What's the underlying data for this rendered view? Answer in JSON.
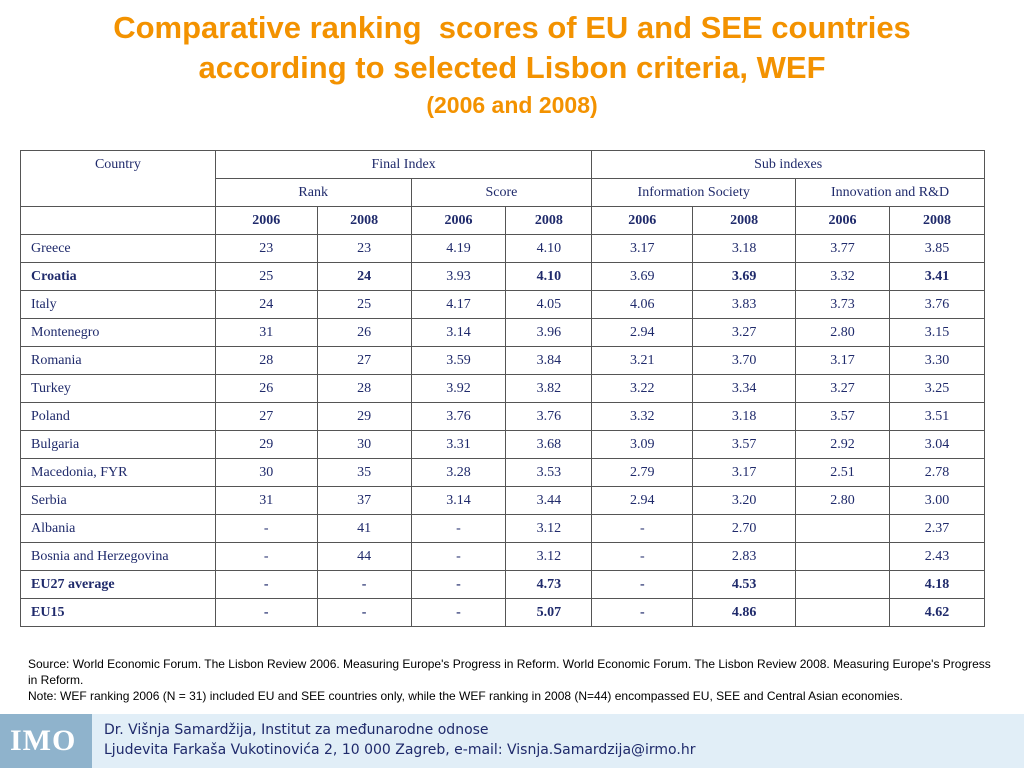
{
  "title": {
    "line1": "Comparative ranking  scores of EU and SEE countries",
    "line2": "according to selected Lisbon criteria, WEF",
    "line3": "(2006 and 2008)"
  },
  "table": {
    "col_country": "Country",
    "group_final": "Final Index",
    "group_sub": "Sub indexes",
    "sub_rank": "Rank",
    "sub_score": "Score",
    "sub_info": "Information Society",
    "sub_innov": "Innovation and R&D",
    "years": [
      "2006",
      "2008",
      "2006",
      "2008",
      "2006",
      "2008",
      "2006",
      "2008"
    ],
    "rows": [
      {
        "country": "Greece",
        "values": [
          "23",
          "23",
          "4.19",
          "4.10",
          "3.17",
          "3.18",
          "3.77",
          "3.85"
        ]
      },
      {
        "country": "Croatia",
        "values": [
          "25",
          "24",
          "3.93",
          "4.10",
          "3.69",
          "3.69",
          "3.32",
          "3.41"
        ]
      },
      {
        "country": "Italy",
        "values": [
          "24",
          "25",
          "4.17",
          "4.05",
          "4.06",
          "3.83",
          "3.73",
          "3.76"
        ]
      },
      {
        "country": "Montenegro",
        "values": [
          "31",
          "26",
          "3.14",
          "3.96",
          "2.94",
          "3.27",
          "2.80",
          "3.15"
        ]
      },
      {
        "country": "Romania",
        "values": [
          "28",
          "27",
          "3.59",
          "3.84",
          "3.21",
          "3.70",
          "3.17",
          "3.30"
        ]
      },
      {
        "country": "Turkey",
        "values": [
          "26",
          "28",
          "3.92",
          "3.82",
          "3.22",
          "3.34",
          "3.27",
          "3.25"
        ]
      },
      {
        "country": "Poland",
        "values": [
          "27",
          "29",
          "3.76",
          "3.76",
          "3.32",
          "3.18",
          "3.57",
          "3.51"
        ]
      },
      {
        "country": "Bulgaria",
        "values": [
          "29",
          "30",
          "3.31",
          "3.68",
          "3.09",
          "3.57",
          "2.92",
          "3.04"
        ]
      },
      {
        "country": "Macedonia, FYR",
        "values": [
          "30",
          "35",
          "3.28",
          "3.53",
          "2.79",
          "3.17",
          "2.51",
          "2.78"
        ]
      },
      {
        "country": "Serbia",
        "values": [
          "31",
          "37",
          "3.14",
          "3.44",
          "2.94",
          "3.20",
          "2.80",
          "3.00"
        ]
      },
      {
        "country": "Albania",
        "values": [
          "-",
          "41",
          "-",
          "3.12",
          "-",
          "2.70",
          "",
          "2.37"
        ]
      },
      {
        "country": "Bosnia and Herzegovina",
        "values": [
          "-",
          "44",
          "-",
          "3.12",
          "-",
          "2.83",
          "",
          "2.43"
        ]
      },
      {
        "country": "EU27 average",
        "values": [
          "-",
          "-",
          "-",
          "4.73",
          "-",
          "4.53",
          "",
          "4.18"
        ]
      },
      {
        "country": "EU15",
        "values": [
          "-",
          "-",
          "-",
          "5.07",
          "-",
          "4.86",
          "",
          "4.62"
        ]
      }
    ]
  },
  "source": {
    "line1": "Source: World Economic Forum. The Lisbon Review 2006. Measuring Europe's Progress in Reform. World Economic Forum. The Lisbon Review 2008. Measuring Europe's Progress in Reform.",
    "line2": "Note: WEF ranking 2006 (N = 31) included EU and SEE countries only, while the WEF ranking in 2008 (N=44) encompassed EU, SEE and Central Asian economies."
  },
  "footer": {
    "logo_text": "IMO",
    "line1": "Dr. Višnja Samardžija, Institut za međunarodne odnose",
    "line2": "Ljudevita Farkaša Vukotinovića 2, 10 000 Zagreb, e-mail: Visnja.Samardzija@irmo.hr"
  }
}
